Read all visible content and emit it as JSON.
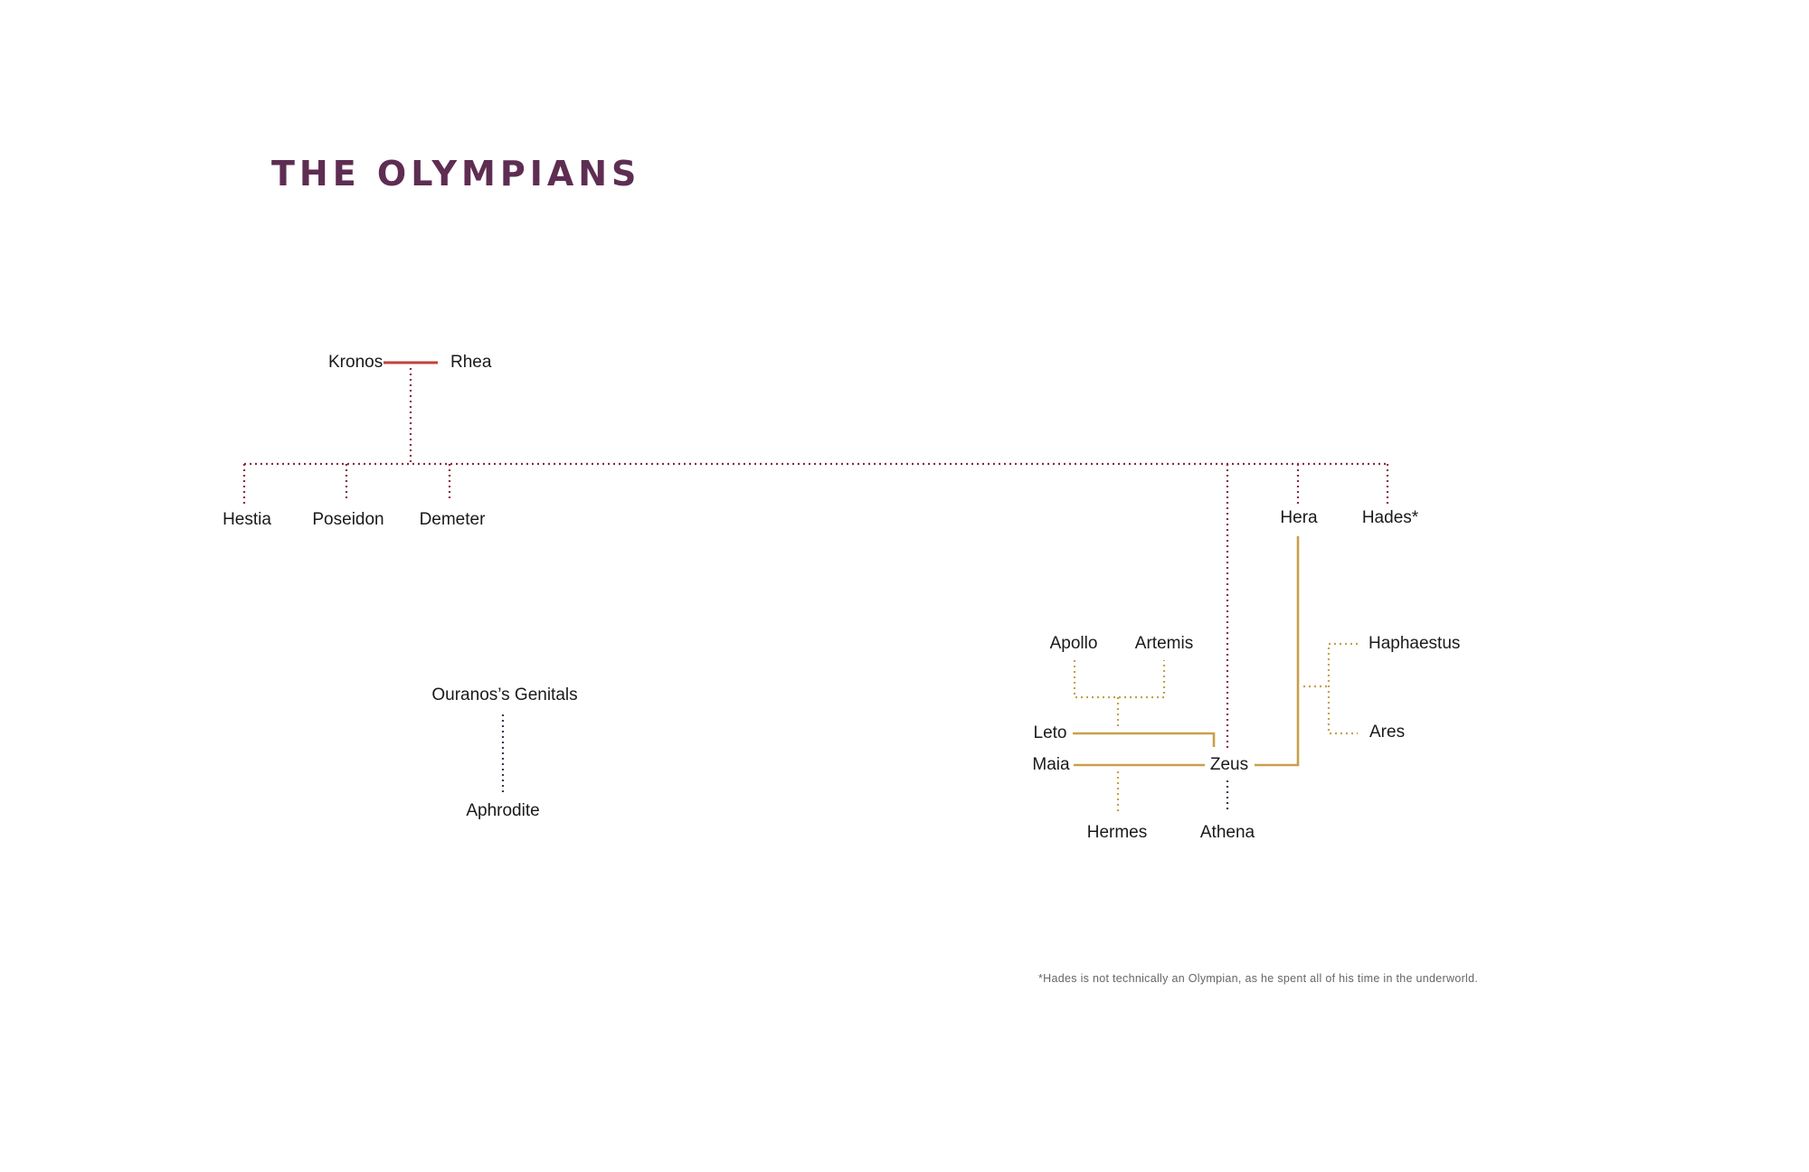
{
  "title": "THE OLYMPIANS",
  "colors": {
    "title": "#5e2d52",
    "marriage_primary": "#c4403a",
    "descent_primary": "#8e2b3e",
    "zeus_unions": "#c9a04a",
    "aphrodite_descent": "#3f3650"
  },
  "names": {
    "kronos": "Kronos",
    "rhea": "Rhea",
    "hestia": "Hestia",
    "poseidon": "Poseidon",
    "demeter": "Demeter",
    "hera": "Hera",
    "hades": "Hades*",
    "ouranos": "Ouranos’s Genitals",
    "aphrodite": "Aphrodite",
    "apollo": "Apollo",
    "artemis": "Artemis",
    "leto": "Leto",
    "maia": "Maia",
    "zeus": "Zeus",
    "hermes": "Hermes",
    "athena": "Athena",
    "haphaestus": "Haphaestus",
    "ares": "Ares"
  },
  "footnote": "*Hades is not technically an Olympian, as he spent all of his time in the underworld."
}
